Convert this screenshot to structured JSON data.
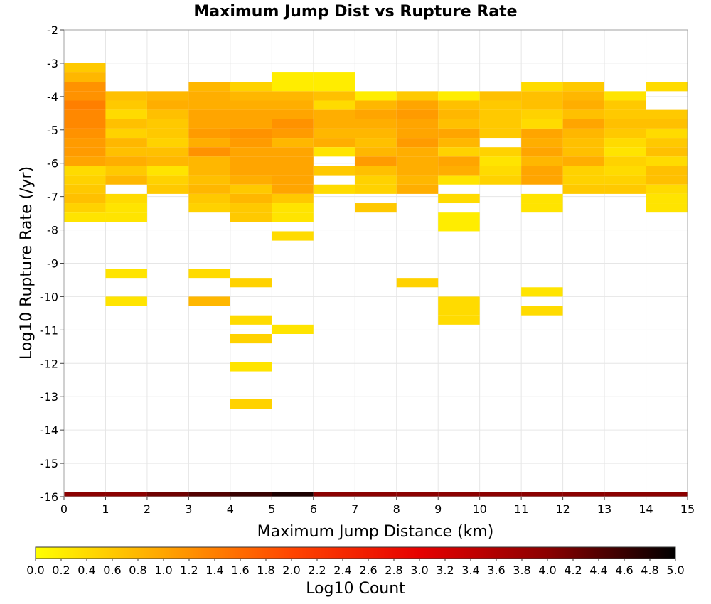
{
  "chart_data": {
    "type": "heatmap",
    "title": "Maximum Jump Dist vs Rupture Rate",
    "xlabel": "Maximum Jump Distance (km)",
    "ylabel": "Log10 Rupture Rate (/yr)",
    "xlim": [
      0,
      15
    ],
    "ylim": [
      -16,
      -2
    ],
    "x_ticks": [
      "0",
      "1",
      "2",
      "3",
      "4",
      "5",
      "6",
      "7",
      "8",
      "9",
      "10",
      "11",
      "12",
      "13",
      "14",
      "15"
    ],
    "y_ticks": [
      "-2",
      "-3",
      "-4",
      "-5",
      "-6",
      "-7",
      "-8",
      "-9",
      "-10",
      "-11",
      "-12",
      "-13",
      "-14",
      "-15",
      "-16"
    ],
    "grid": true,
    "x_bin_width": 1,
    "y_bin_height": 0.28,
    "colorbar": {
      "label": "Log10 Count",
      "min": 0,
      "max": 5,
      "ticks": [
        "0.0",
        "0.2",
        "0.4",
        "0.6",
        "0.8",
        "1.0",
        "1.2",
        "1.4",
        "1.6",
        "1.8",
        "2.0",
        "2.2",
        "2.4",
        "2.6",
        "2.8",
        "3.0",
        "3.2",
        "3.4",
        "3.6",
        "3.8",
        "4.0",
        "4.2",
        "4.4",
        "4.6",
        "4.8",
        "5.0"
      ],
      "stops": [
        "#ffff00",
        "#ffa500",
        "#ff4500",
        "#e60000",
        "#8b0000",
        "#000000"
      ]
    },
    "bins": [
      {
        "x": 0,
        "y": -3.14,
        "v": 0.6
      },
      {
        "x": 0,
        "y": -3.42,
        "v": 0.8
      },
      {
        "x": 0,
        "y": -3.7,
        "v": 1.2
      },
      {
        "x": 0,
        "y": -3.98,
        "v": 1.2
      },
      {
        "x": 0,
        "y": -4.26,
        "v": 1.4
      },
      {
        "x": 0,
        "y": -4.54,
        "v": 1.3
      },
      {
        "x": 0,
        "y": -4.82,
        "v": 1.3
      },
      {
        "x": 0,
        "y": -5.1,
        "v": 1.2
      },
      {
        "x": 0,
        "y": -5.38,
        "v": 1.1
      },
      {
        "x": 0,
        "y": -5.66,
        "v": 1.1
      },
      {
        "x": 0,
        "y": -5.94,
        "v": 1.0
      },
      {
        "x": 0,
        "y": -6.22,
        "v": 0.4
      },
      {
        "x": 0,
        "y": -6.5,
        "v": 0.5
      },
      {
        "x": 0,
        "y": -6.78,
        "v": 0.6
      },
      {
        "x": 0,
        "y": -7.06,
        "v": 0.7
      },
      {
        "x": 0,
        "y": -7.34,
        "v": 0.5
      },
      {
        "x": 0,
        "y": -7.62,
        "v": 0.3
      },
      {
        "x": 1,
        "y": -3.98,
        "v": 0.7
      },
      {
        "x": 1,
        "y": -4.26,
        "v": 0.6
      },
      {
        "x": 1,
        "y": -4.54,
        "v": 0.4
      },
      {
        "x": 1,
        "y": -4.82,
        "v": 0.7
      },
      {
        "x": 1,
        "y": -5.1,
        "v": 0.5
      },
      {
        "x": 1,
        "y": -5.38,
        "v": 0.8
      },
      {
        "x": 1,
        "y": -5.66,
        "v": 0.7
      },
      {
        "x": 1,
        "y": -5.94,
        "v": 0.9
      },
      {
        "x": 1,
        "y": -6.22,
        "v": 0.6
      },
      {
        "x": 1,
        "y": -6.5,
        "v": 0.8
      },
      {
        "x": 1,
        "y": -7.06,
        "v": 0.4
      },
      {
        "x": 1,
        "y": -7.34,
        "v": 0.3
      },
      {
        "x": 1,
        "y": -7.62,
        "v": 0.3
      },
      {
        "x": 1,
        "y": -9.3,
        "v": 0.3
      },
      {
        "x": 1,
        "y": -10.14,
        "v": 0.3
      },
      {
        "x": 2,
        "y": -3.98,
        "v": 0.8
      },
      {
        "x": 2,
        "y": -4.26,
        "v": 0.9
      },
      {
        "x": 2,
        "y": -4.54,
        "v": 0.7
      },
      {
        "x": 2,
        "y": -4.82,
        "v": 0.6
      },
      {
        "x": 2,
        "y": -5.1,
        "v": 0.6
      },
      {
        "x": 2,
        "y": -5.38,
        "v": 0.5
      },
      {
        "x": 2,
        "y": -5.66,
        "v": 0.7
      },
      {
        "x": 2,
        "y": -5.94,
        "v": 0.8
      },
      {
        "x": 2,
        "y": -6.22,
        "v": 0.3
      },
      {
        "x": 2,
        "y": -6.5,
        "v": 0.5
      },
      {
        "x": 2,
        "y": -6.78,
        "v": 0.6
      },
      {
        "x": 3,
        "y": -3.7,
        "v": 0.8
      },
      {
        "x": 3,
        "y": -3.98,
        "v": 0.9
      },
      {
        "x": 3,
        "y": -4.26,
        "v": 0.9
      },
      {
        "x": 3,
        "y": -4.54,
        "v": 1.0
      },
      {
        "x": 3,
        "y": -4.82,
        "v": 1.0
      },
      {
        "x": 3,
        "y": -5.1,
        "v": 1.1
      },
      {
        "x": 3,
        "y": -5.38,
        "v": 0.9
      },
      {
        "x": 3,
        "y": -5.66,
        "v": 1.2
      },
      {
        "x": 3,
        "y": -5.94,
        "v": 0.8
      },
      {
        "x": 3,
        "y": -6.22,
        "v": 0.8
      },
      {
        "x": 3,
        "y": -6.5,
        "v": 0.7
      },
      {
        "x": 3,
        "y": -6.78,
        "v": 0.8
      },
      {
        "x": 3,
        "y": -7.06,
        "v": 0.6
      },
      {
        "x": 3,
        "y": -7.34,
        "v": 0.5
      },
      {
        "x": 3,
        "y": -9.3,
        "v": 0.4
      },
      {
        "x": 3,
        "y": -10.14,
        "v": 0.8
      },
      {
        "x": 4,
        "y": -3.7,
        "v": 0.5
      },
      {
        "x": 4,
        "y": -3.98,
        "v": 0.8
      },
      {
        "x": 4,
        "y": -4.26,
        "v": 0.9
      },
      {
        "x": 4,
        "y": -4.54,
        "v": 1.0
      },
      {
        "x": 4,
        "y": -4.82,
        "v": 1.0
      },
      {
        "x": 4,
        "y": -5.1,
        "v": 1.2
      },
      {
        "x": 4,
        "y": -5.38,
        "v": 1.1
      },
      {
        "x": 4,
        "y": -5.66,
        "v": 1.0
      },
      {
        "x": 4,
        "y": -5.94,
        "v": 1.0
      },
      {
        "x": 4,
        "y": -6.22,
        "v": 1.0
      },
      {
        "x": 4,
        "y": -6.5,
        "v": 0.9
      },
      {
        "x": 4,
        "y": -6.78,
        "v": 0.6
      },
      {
        "x": 4,
        "y": -7.06,
        "v": 0.8
      },
      {
        "x": 4,
        "y": -7.34,
        "v": 0.6
      },
      {
        "x": 4,
        "y": -7.62,
        "v": 0.6
      },
      {
        "x": 4,
        "y": -9.58,
        "v": 0.5
      },
      {
        "x": 4,
        "y": -10.7,
        "v": 0.4
      },
      {
        "x": 4,
        "y": -11.26,
        "v": 0.5
      },
      {
        "x": 4,
        "y": -12.1,
        "v": 0.3
      },
      {
        "x": 4,
        "y": -13.22,
        "v": 0.5
      },
      {
        "x": 5,
        "y": -3.42,
        "v": 0.2
      },
      {
        "x": 5,
        "y": -3.7,
        "v": 0.2
      },
      {
        "x": 5,
        "y": -3.98,
        "v": 0.8
      },
      {
        "x": 5,
        "y": -4.26,
        "v": 0.9
      },
      {
        "x": 5,
        "y": -4.54,
        "v": 1.0
      },
      {
        "x": 5,
        "y": -4.82,
        "v": 1.2
      },
      {
        "x": 5,
        "y": -5.1,
        "v": 1.1
      },
      {
        "x": 5,
        "y": -5.38,
        "v": 0.8
      },
      {
        "x": 5,
        "y": -5.66,
        "v": 1.0
      },
      {
        "x": 5,
        "y": -5.94,
        "v": 1.0
      },
      {
        "x": 5,
        "y": -6.22,
        "v": 1.0
      },
      {
        "x": 5,
        "y": -6.5,
        "v": 1.0
      },
      {
        "x": 5,
        "y": -6.78,
        "v": 1.0
      },
      {
        "x": 5,
        "y": -7.06,
        "v": 0.6
      },
      {
        "x": 5,
        "y": -7.34,
        "v": 0.3
      },
      {
        "x": 5,
        "y": -7.62,
        "v": 0.3
      },
      {
        "x": 5,
        "y": -8.18,
        "v": 0.4
      },
      {
        "x": 5,
        "y": -10.98,
        "v": 0.3
      },
      {
        "x": 6,
        "y": -3.42,
        "v": 0.2
      },
      {
        "x": 6,
        "y": -3.7,
        "v": 0.2
      },
      {
        "x": 6,
        "y": -3.98,
        "v": 0.7
      },
      {
        "x": 6,
        "y": -4.26,
        "v": 0.4
      },
      {
        "x": 6,
        "y": -4.54,
        "v": 0.9
      },
      {
        "x": 6,
        "y": -4.82,
        "v": 0.9
      },
      {
        "x": 6,
        "y": -5.1,
        "v": 0.8
      },
      {
        "x": 6,
        "y": -5.38,
        "v": 0.9
      },
      {
        "x": 6,
        "y": -5.66,
        "v": 0.3
      },
      {
        "x": 6,
        "y": -6.22,
        "v": 0.6
      },
      {
        "x": 6,
        "y": -6.78,
        "v": 0.4
      },
      {
        "x": 7,
        "y": -3.98,
        "v": 0.2
      },
      {
        "x": 7,
        "y": -4.26,
        "v": 0.8
      },
      {
        "x": 7,
        "y": -4.54,
        "v": 1.0
      },
      {
        "x": 7,
        "y": -4.82,
        "v": 0.9
      },
      {
        "x": 7,
        "y": -5.1,
        "v": 0.8
      },
      {
        "x": 7,
        "y": -5.38,
        "v": 0.7
      },
      {
        "x": 7,
        "y": -5.66,
        "v": 0.8
      },
      {
        "x": 7,
        "y": -5.94,
        "v": 1.1
      },
      {
        "x": 7,
        "y": -6.22,
        "v": 0.7
      },
      {
        "x": 7,
        "y": -6.5,
        "v": 0.5
      },
      {
        "x": 7,
        "y": -6.78,
        "v": 0.5
      },
      {
        "x": 7,
        "y": -7.34,
        "v": 0.6
      },
      {
        "x": 8,
        "y": -3.98,
        "v": 0.6
      },
      {
        "x": 8,
        "y": -4.26,
        "v": 1.0
      },
      {
        "x": 8,
        "y": -4.54,
        "v": 1.1
      },
      {
        "x": 8,
        "y": -4.82,
        "v": 1.0
      },
      {
        "x": 8,
        "y": -5.1,
        "v": 1.0
      },
      {
        "x": 8,
        "y": -5.38,
        "v": 1.1
      },
      {
        "x": 8,
        "y": -5.66,
        "v": 0.9
      },
      {
        "x": 8,
        "y": -5.94,
        "v": 0.9
      },
      {
        "x": 8,
        "y": -6.22,
        "v": 0.9
      },
      {
        "x": 8,
        "y": -6.5,
        "v": 0.8
      },
      {
        "x": 8,
        "y": -6.78,
        "v": 0.9
      },
      {
        "x": 8,
        "y": -9.58,
        "v": 0.5
      },
      {
        "x": 9,
        "y": -3.98,
        "v": 0.2
      },
      {
        "x": 9,
        "y": -4.26,
        "v": 0.7
      },
      {
        "x": 9,
        "y": -4.54,
        "v": 0.8
      },
      {
        "x": 9,
        "y": -4.82,
        "v": 0.7
      },
      {
        "x": 9,
        "y": -5.1,
        "v": 1.0
      },
      {
        "x": 9,
        "y": -5.38,
        "v": 0.8
      },
      {
        "x": 9,
        "y": -5.66,
        "v": 0.5
      },
      {
        "x": 9,
        "y": -5.94,
        "v": 1.0
      },
      {
        "x": 9,
        "y": -6.22,
        "v": 0.9
      },
      {
        "x": 9,
        "y": -6.5,
        "v": 0.3
      },
      {
        "x": 9,
        "y": -7.06,
        "v": 0.4
      },
      {
        "x": 9,
        "y": -7.62,
        "v": 0.2
      },
      {
        "x": 9,
        "y": -7.9,
        "v": 0.2
      },
      {
        "x": 9,
        "y": -10.14,
        "v": 0.4
      },
      {
        "x": 9,
        "y": -10.42,
        "v": 0.4
      },
      {
        "x": 9,
        "y": -10.7,
        "v": 0.4
      },
      {
        "x": 10,
        "y": -3.98,
        "v": 0.7
      },
      {
        "x": 10,
        "y": -4.26,
        "v": 0.6
      },
      {
        "x": 10,
        "y": -4.54,
        "v": 0.6
      },
      {
        "x": 10,
        "y": -4.82,
        "v": 0.6
      },
      {
        "x": 10,
        "y": -5.1,
        "v": 0.6
      },
      {
        "x": 10,
        "y": -5.66,
        "v": 0.5
      },
      {
        "x": 10,
        "y": -5.94,
        "v": 0.3
      },
      {
        "x": 10,
        "y": -6.22,
        "v": 0.4
      },
      {
        "x": 10,
        "y": -6.5,
        "v": 0.5
      },
      {
        "x": 11,
        "y": -3.7,
        "v": 0.4
      },
      {
        "x": 11,
        "y": -3.98,
        "v": 0.7
      },
      {
        "x": 11,
        "y": -4.26,
        "v": 0.7
      },
      {
        "x": 11,
        "y": -4.54,
        "v": 0.5
      },
      {
        "x": 11,
        "y": -4.82,
        "v": 0.4
      },
      {
        "x": 11,
        "y": -5.1,
        "v": 1.0
      },
      {
        "x": 11,
        "y": -5.38,
        "v": 0.9
      },
      {
        "x": 11,
        "y": -5.66,
        "v": 1.0
      },
      {
        "x": 11,
        "y": -5.94,
        "v": 0.8
      },
      {
        "x": 11,
        "y": -6.22,
        "v": 1.0
      },
      {
        "x": 11,
        "y": -6.5,
        "v": 1.0
      },
      {
        "x": 11,
        "y": -7.06,
        "v": 0.3
      },
      {
        "x": 11,
        "y": -7.34,
        "v": 0.3
      },
      {
        "x": 11,
        "y": -9.86,
        "v": 0.3
      },
      {
        "x": 11,
        "y": -10.42,
        "v": 0.4
      },
      {
        "x": 12,
        "y": -3.7,
        "v": 0.6
      },
      {
        "x": 12,
        "y": -3.98,
        "v": 0.8
      },
      {
        "x": 12,
        "y": -4.26,
        "v": 0.9
      },
      {
        "x": 12,
        "y": -4.54,
        "v": 0.7
      },
      {
        "x": 12,
        "y": -4.82,
        "v": 1.0
      },
      {
        "x": 12,
        "y": -5.1,
        "v": 0.8
      },
      {
        "x": 12,
        "y": -5.38,
        "v": 0.7
      },
      {
        "x": 12,
        "y": -5.66,
        "v": 0.7
      },
      {
        "x": 12,
        "y": -5.94,
        "v": 0.9
      },
      {
        "x": 12,
        "y": -6.22,
        "v": 0.5
      },
      {
        "x": 12,
        "y": -6.5,
        "v": 0.5
      },
      {
        "x": 12,
        "y": -6.78,
        "v": 0.6
      },
      {
        "x": 13,
        "y": -3.98,
        "v": 0.3
      },
      {
        "x": 13,
        "y": -4.26,
        "v": 0.6
      },
      {
        "x": 13,
        "y": -4.54,
        "v": 0.6
      },
      {
        "x": 13,
        "y": -4.82,
        "v": 0.7
      },
      {
        "x": 13,
        "y": -5.1,
        "v": 0.6
      },
      {
        "x": 13,
        "y": -5.38,
        "v": 0.4
      },
      {
        "x": 13,
        "y": -5.66,
        "v": 0.3
      },
      {
        "x": 13,
        "y": -5.94,
        "v": 0.5
      },
      {
        "x": 13,
        "y": -6.22,
        "v": 0.4
      },
      {
        "x": 13,
        "y": -6.5,
        "v": 0.5
      },
      {
        "x": 13,
        "y": -6.78,
        "v": 0.6
      },
      {
        "x": 14,
        "y": -3.7,
        "v": 0.4
      },
      {
        "x": 14,
        "y": -4.54,
        "v": 0.6
      },
      {
        "x": 14,
        "y": -4.82,
        "v": 0.7
      },
      {
        "x": 14,
        "y": -5.1,
        "v": 0.4
      },
      {
        "x": 14,
        "y": -5.38,
        "v": 0.6
      },
      {
        "x": 14,
        "y": -5.66,
        "v": 0.7
      },
      {
        "x": 14,
        "y": -5.94,
        "v": 0.4
      },
      {
        "x": 14,
        "y": -6.22,
        "v": 0.7
      },
      {
        "x": 14,
        "y": -6.5,
        "v": 0.7
      },
      {
        "x": 14,
        "y": -6.78,
        "v": 0.4
      },
      {
        "x": 14,
        "y": -7.06,
        "v": 0.3
      },
      {
        "x": 14,
        "y": -7.34,
        "v": 0.3
      },
      {
        "x": 0,
        "y": -16,
        "v": 4.0
      },
      {
        "x": 1,
        "y": -16,
        "v": 4.0
      },
      {
        "x": 2,
        "y": -16,
        "v": 4.2
      },
      {
        "x": 3,
        "y": -16,
        "v": 4.4
      },
      {
        "x": 4,
        "y": -16,
        "v": 4.6
      },
      {
        "x": 5,
        "y": -16,
        "v": 4.8
      },
      {
        "x": 6,
        "y": -16,
        "v": 4.0
      },
      {
        "x": 7,
        "y": -16,
        "v": 4.0
      },
      {
        "x": 8,
        "y": -16,
        "v": 4.0
      },
      {
        "x": 9,
        "y": -16,
        "v": 4.0
      },
      {
        "x": 10,
        "y": -16,
        "v": 4.0
      },
      {
        "x": 11,
        "y": -16,
        "v": 4.0
      },
      {
        "x": 12,
        "y": -16,
        "v": 4.0
      },
      {
        "x": 13,
        "y": -16,
        "v": 4.0
      },
      {
        "x": 14,
        "y": -16,
        "v": 4.0
      }
    ]
  }
}
